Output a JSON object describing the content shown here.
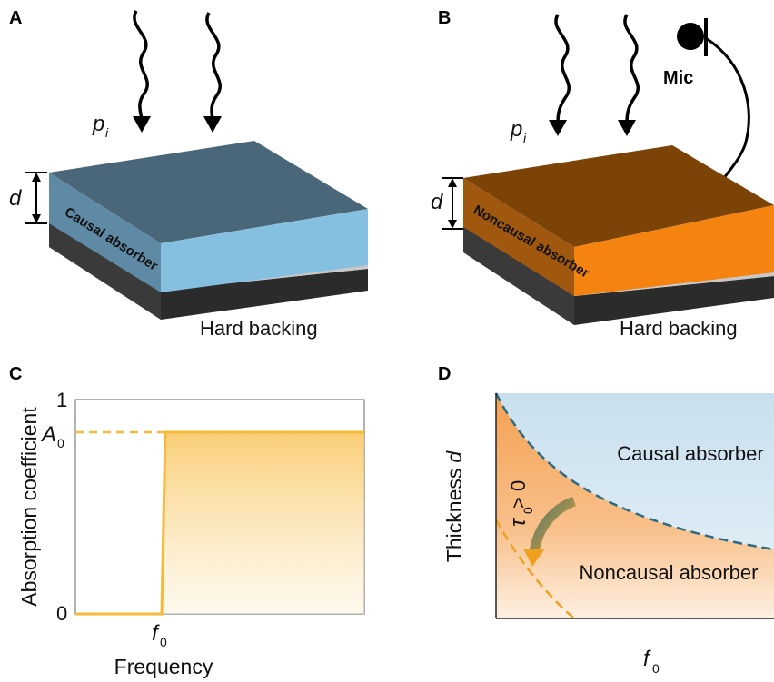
{
  "panels": {
    "a": {
      "label": "A",
      "wave_label": "p",
      "wave_sub": "i",
      "thickness_label": "d",
      "side_label": "Causal absorber",
      "backing_label": "Hard backing",
      "colors": {
        "top": "#4a6779",
        "front": "#86c0e0",
        "side": "#5d8aa5"
      }
    },
    "b": {
      "label": "B",
      "wave_label": "p",
      "wave_sub": "i",
      "thickness_label": "d",
      "side_label": "Noncausal absorber",
      "backing_label": "Hard backing",
      "mic_label": "Mic",
      "colors": {
        "top": "#7b4306",
        "front": "#f4830f",
        "side": "#a0570e"
      }
    },
    "c": {
      "label": "C",
      "ylabel": "Absorption coefficient",
      "xlabel": "Frequency",
      "y_ticks": [
        "1",
        "0"
      ],
      "a0_label": "A",
      "a0_sub": "0",
      "f0_label": "f",
      "f0_sub": "0",
      "line_color": "#f6b93a"
    },
    "d": {
      "label": "D",
      "ylabel": "Thickness",
      "ylabel_var": "d",
      "xlabel": "f",
      "xlabel_sub": "0",
      "region_top": "Causal absorber",
      "region_bottom": "Noncausal absorber",
      "arrow_label": "τ",
      "arrow_sub": "0",
      "arrow_rel": " > 0",
      "colors": {
        "causal": "#d6e9f4",
        "noncausal": "#f5a95a",
        "boundary": "#2f6a82",
        "lower": "#f0a020"
      }
    }
  },
  "chart_data": {
    "type": "line",
    "title": "",
    "xlabel": "Frequency",
    "ylabel": "Absorption coefficient",
    "y_ticks": [
      "0",
      "1"
    ],
    "x_ticks": [
      "f0"
    ],
    "series": [
      {
        "x": [
          "0",
          "f0",
          "f0",
          "max"
        ],
        "y": [
          0,
          0,
          "A0",
          "A0"
        ]
      }
    ]
  }
}
